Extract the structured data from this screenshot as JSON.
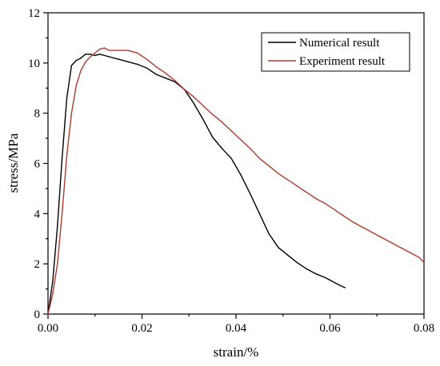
{
  "chart_data": {
    "type": "line",
    "xlabel": "strain/%",
    "ylabel": "stress/MPa",
    "xlim": [
      0,
      0.08
    ],
    "ylim": [
      0,
      12
    ],
    "grid": false,
    "legend_position": "top-right",
    "x_ticks": [
      "0.00",
      "0.02",
      "0.04",
      "0.06",
      "0.08"
    ],
    "y_ticks": [
      "0",
      "2",
      "4",
      "6",
      "8",
      "10",
      "12"
    ],
    "series": [
      {
        "name": "Numerical result",
        "color": "#000000",
        "points": [
          [
            0.0,
            0.0
          ],
          [
            0.001,
            1.3
          ],
          [
            0.002,
            3.5
          ],
          [
            0.003,
            6.2
          ],
          [
            0.004,
            8.6
          ],
          [
            0.005,
            9.9
          ],
          [
            0.006,
            10.1
          ],
          [
            0.007,
            10.2
          ],
          [
            0.008,
            10.35
          ],
          [
            0.009,
            10.35
          ],
          [
            0.01,
            10.3
          ],
          [
            0.011,
            10.35
          ],
          [
            0.013,
            10.25
          ],
          [
            0.015,
            10.15
          ],
          [
            0.017,
            10.05
          ],
          [
            0.019,
            9.95
          ],
          [
            0.021,
            9.8
          ],
          [
            0.023,
            9.55
          ],
          [
            0.025,
            9.4
          ],
          [
            0.027,
            9.25
          ],
          [
            0.029,
            8.95
          ],
          [
            0.031,
            8.4
          ],
          [
            0.033,
            7.75
          ],
          [
            0.035,
            7.05
          ],
          [
            0.037,
            6.6
          ],
          [
            0.039,
            6.2
          ],
          [
            0.041,
            5.55
          ],
          [
            0.043,
            4.8
          ],
          [
            0.045,
            4.0
          ],
          [
            0.047,
            3.2
          ],
          [
            0.049,
            2.65
          ],
          [
            0.051,
            2.35
          ],
          [
            0.053,
            2.05
          ],
          [
            0.055,
            1.8
          ],
          [
            0.057,
            1.6
          ],
          [
            0.059,
            1.45
          ],
          [
            0.061,
            1.25
          ],
          [
            0.062,
            1.15
          ],
          [
            0.0632,
            1.05
          ]
        ]
      },
      {
        "name": "Experiment result",
        "color": "#b03a2e",
        "points": [
          [
            0.0,
            0.0
          ],
          [
            0.001,
            0.8
          ],
          [
            0.002,
            2.0
          ],
          [
            0.003,
            4.0
          ],
          [
            0.004,
            6.3
          ],
          [
            0.005,
            8.0
          ],
          [
            0.006,
            9.1
          ],
          [
            0.007,
            9.7
          ],
          [
            0.008,
            10.05
          ],
          [
            0.009,
            10.25
          ],
          [
            0.01,
            10.4
          ],
          [
            0.011,
            10.55
          ],
          [
            0.012,
            10.6
          ],
          [
            0.013,
            10.5
          ],
          [
            0.015,
            10.5
          ],
          [
            0.017,
            10.5
          ],
          [
            0.019,
            10.4
          ],
          [
            0.021,
            10.15
          ],
          [
            0.023,
            9.85
          ],
          [
            0.025,
            9.6
          ],
          [
            0.027,
            9.3
          ],
          [
            0.029,
            8.95
          ],
          [
            0.031,
            8.65
          ],
          [
            0.033,
            8.3
          ],
          [
            0.035,
            7.95
          ],
          [
            0.037,
            7.65
          ],
          [
            0.039,
            7.3
          ],
          [
            0.041,
            6.95
          ],
          [
            0.043,
            6.6
          ],
          [
            0.045,
            6.2
          ],
          [
            0.047,
            5.9
          ],
          [
            0.049,
            5.6
          ],
          [
            0.051,
            5.35
          ],
          [
            0.053,
            5.1
          ],
          [
            0.055,
            4.85
          ],
          [
            0.057,
            4.6
          ],
          [
            0.059,
            4.4
          ],
          [
            0.061,
            4.15
          ],
          [
            0.063,
            3.9
          ],
          [
            0.065,
            3.65
          ],
          [
            0.067,
            3.45
          ],
          [
            0.069,
            3.25
          ],
          [
            0.071,
            3.05
          ],
          [
            0.073,
            2.85
          ],
          [
            0.075,
            2.65
          ],
          [
            0.077,
            2.45
          ],
          [
            0.079,
            2.25
          ],
          [
            0.08,
            2.05
          ]
        ]
      }
    ]
  }
}
